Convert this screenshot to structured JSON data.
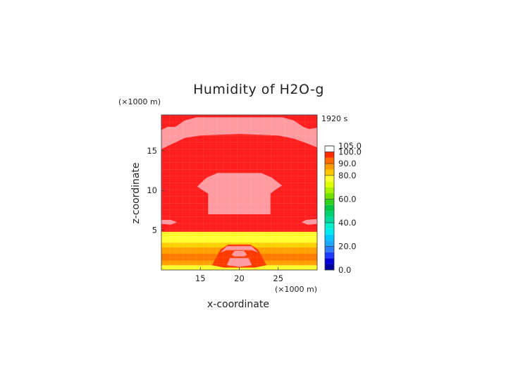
{
  "chart_data": {
    "type": "heatmap",
    "title": "Humidity of H2O-g",
    "xlabel": "x-coordinate",
    "ylabel": "z-coordinate",
    "x_unit": "(×1000 m)",
    "z_unit": "(×1000 m)",
    "time_label": "1920 s",
    "xlim": [
      10,
      30
    ],
    "ylim": [
      0,
      19.5
    ],
    "x_ticks": [
      15,
      20,
      25
    ],
    "y_ticks": [
      5,
      10,
      15
    ],
    "colorbar": {
      "range": [
        0,
        105
      ],
      "labels": [
        "0.0",
        "20.0",
        "40.0",
        "60.0",
        "80.0",
        "90.0",
        "100.0",
        "105.0"
      ],
      "label_values": [
        0,
        20,
        40,
        60,
        80,
        90,
        100,
        105
      ],
      "segments": [
        {
          "from": 0,
          "to": 5,
          "color": "#0000a0"
        },
        {
          "from": 5,
          "to": 10,
          "color": "#0000d8"
        },
        {
          "from": 10,
          "to": 15,
          "color": "#1c3cff"
        },
        {
          "from": 15,
          "to": 20,
          "color": "#2f7cff"
        },
        {
          "from": 20,
          "to": 25,
          "color": "#1fa8ff"
        },
        {
          "from": 25,
          "to": 30,
          "color": "#00c8ff"
        },
        {
          "from": 30,
          "to": 35,
          "color": "#00e8f0"
        },
        {
          "from": 35,
          "to": 40,
          "color": "#00f0c8"
        },
        {
          "from": 40,
          "to": 45,
          "color": "#00d89c"
        },
        {
          "from": 45,
          "to": 50,
          "color": "#00d070"
        },
        {
          "from": 50,
          "to": 55,
          "color": "#00c840"
        },
        {
          "from": 55,
          "to": 60,
          "color": "#30d020"
        },
        {
          "from": 60,
          "to": 65,
          "color": "#70e000"
        },
        {
          "from": 65,
          "to": 70,
          "color": "#a8f000"
        },
        {
          "from": 70,
          "to": 75,
          "color": "#e0ff00"
        },
        {
          "from": 75,
          "to": 80,
          "color": "#ffff30"
        },
        {
          "from": 80,
          "to": 85,
          "color": "#ffc800"
        },
        {
          "from": 85,
          "to": 90,
          "color": "#ff9a00"
        },
        {
          "from": 90,
          "to": 95,
          "color": "#ff6a00"
        },
        {
          "from": 95,
          "to": 100,
          "color": "#ff2a00"
        },
        {
          "from": 100,
          "to": 105,
          "color": "#ffffff"
        }
      ]
    },
    "field_colors": {
      "background": "#ff1e1e",
      "saturated_patch": "#ff9aa0",
      "band_yellow": "#ffff30",
      "band_orange": "#ffa000",
      "band_red": "#ff3a00"
    },
    "regions": [
      {
        "level": "100",
        "shape": "upper cloud",
        "x_range": [
          10,
          30
        ],
        "z_range": [
          15.2,
          19.3
        ]
      },
      {
        "level": "100",
        "shape": "middle cloud",
        "x_range": [
          14.5,
          25.5
        ],
        "z_range": [
          7.0,
          12.2
        ]
      },
      {
        "level": "75-80",
        "shape": "lower band",
        "x_range": [
          10,
          30
        ],
        "z_range": [
          3.4,
          4.8
        ]
      },
      {
        "level": "85-95",
        "shape": "surface layer",
        "x_range": [
          10,
          30
        ],
        "z_range": [
          0,
          3.4
        ]
      },
      {
        "level": "100",
        "shape": "surface plume",
        "x_range": [
          17.6,
          22.2
        ],
        "z_range": [
          0.4,
          3.2
        ]
      }
    ]
  }
}
